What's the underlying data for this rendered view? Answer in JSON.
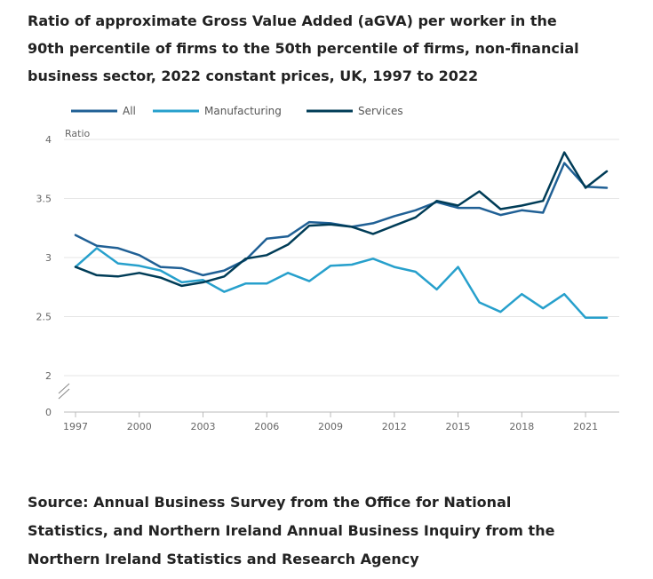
{
  "title": "Ratio of approximate Gross Value Added (aGVA) per worker in the 90th percentile of firms to the 50th percentile of firms, non-financial business sector, 2022 constant prices, UK, 1997 to 2022",
  "source": "Source: Annual Business Survey from the Office for National Statistics, and Northern Ireland Annual Business Inquiry from the Northern Ireland Statistics and Research Agency",
  "chart_data": {
    "type": "line",
    "title": "Ratio of approximate Gross Value Added (aGVA) per worker in the 90th percentile of firms to the 50th percentile of firms, non-financial business sector, 2022 constant prices, UK, 1997 to 2022",
    "xlabel": "",
    "ylabel": "Ratio",
    "x": [
      1997,
      1998,
      1999,
      2000,
      2001,
      2002,
      2003,
      2004,
      2005,
      2006,
      2007,
      2008,
      2009,
      2010,
      2011,
      2012,
      2013,
      2014,
      2015,
      2016,
      2017,
      2018,
      2019,
      2020,
      2021,
      2022
    ],
    "x_ticks": [
      "1997",
      "2000",
      "2003",
      "2006",
      "2009",
      "2012",
      "2015",
      "2018",
      "2021"
    ],
    "y_ticks": [
      "0",
      "2",
      "2.5",
      "3",
      "3.5",
      "4"
    ],
    "ylim": [
      0,
      4
    ],
    "y_axis_break": "between 0 and 2",
    "grid": true,
    "legend_position": "top",
    "series": [
      {
        "name": "All",
        "color": "#206095",
        "values": [
          3.19,
          3.1,
          3.08,
          3.02,
          2.92,
          2.91,
          2.85,
          2.89,
          2.98,
          3.16,
          3.18,
          3.3,
          3.29,
          3.26,
          3.29,
          3.35,
          3.4,
          3.47,
          3.42,
          3.42,
          3.36,
          3.4,
          3.38,
          3.8,
          3.6,
          3.59
        ]
      },
      {
        "name": "Manufacturing",
        "color": "#27a0cc",
        "values": [
          2.92,
          3.08,
          2.95,
          2.93,
          2.89,
          2.79,
          2.81,
          2.71,
          2.78,
          2.78,
          2.87,
          2.8,
          2.93,
          2.94,
          2.99,
          2.92,
          2.88,
          2.73,
          2.92,
          2.62,
          2.54,
          2.69,
          2.57,
          2.69,
          2.49,
          2.49
        ]
      },
      {
        "name": "Services",
        "color": "#003c57",
        "values": [
          2.92,
          2.85,
          2.84,
          2.87,
          2.83,
          2.76,
          2.79,
          2.84,
          2.99,
          3.02,
          3.11,
          3.27,
          3.28,
          3.26,
          3.2,
          3.27,
          3.34,
          3.48,
          3.44,
          3.56,
          3.41,
          3.44,
          3.48,
          3.89,
          3.59,
          3.73
        ]
      }
    ]
  }
}
